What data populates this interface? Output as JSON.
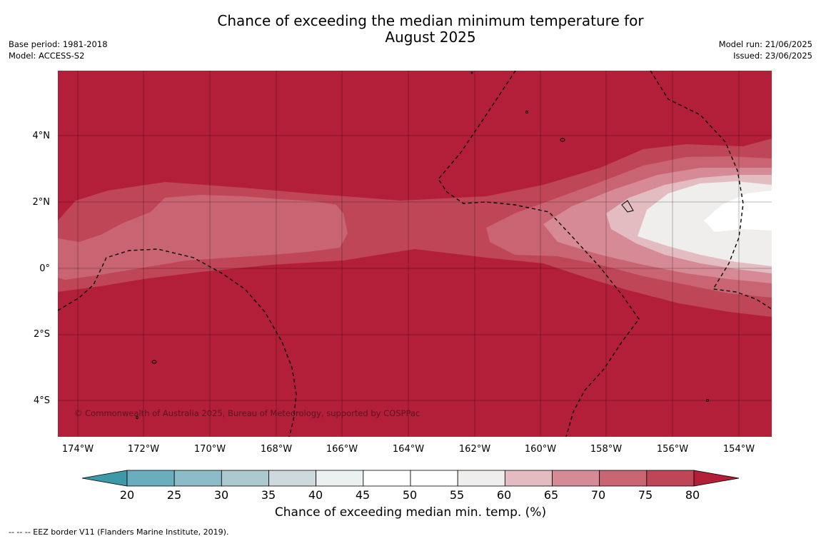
{
  "title": {
    "line1": "Chance of exceeding the median minimum temperature for",
    "line2": "August 2025"
  },
  "meta_left": {
    "base_period": "Base period: 1981-2018",
    "model": "Model: ACCESS-S2"
  },
  "meta_right": {
    "model_run": "Model run: 21/06/2025",
    "issued": "Issued: 23/06/2025"
  },
  "map": {
    "lat_labels": [
      "4°N",
      "2°N",
      "0°",
      "2°S",
      "4°S"
    ],
    "lon_labels": [
      "174°W",
      "172°W",
      "170°W",
      "168°W",
      "166°W",
      "164°W",
      "162°W",
      "160°W",
      "158°W",
      "156°W",
      "154°W"
    ],
    "copyright": "© Commonwealth of Australia 2025, Bureau of Meteorology, supported by COSPPac",
    "background_color": "#b31e38"
  },
  "colorbar": {
    "title": "Chance of exceeding median min. temp. (%)",
    "ticks": [
      "20",
      "25",
      "30",
      "35",
      "40",
      "45",
      "50",
      "55",
      "60",
      "65",
      "70",
      "75",
      "80"
    ],
    "low_color": "#3d99a8",
    "high_color": "#b31e38",
    "colors": [
      "#6aaebd",
      "#8bbcc8",
      "#acc9cf",
      "#cdd9dc",
      "#ebf0f0",
      "#ffffff",
      "#ffffff",
      "#efeeec",
      "#e2bcc1",
      "#d68a95",
      "#c96472",
      "#bf4657"
    ]
  },
  "footnote": "--  --  -- EEZ border V11 (Flanders Marine Institute, 2019)."
}
